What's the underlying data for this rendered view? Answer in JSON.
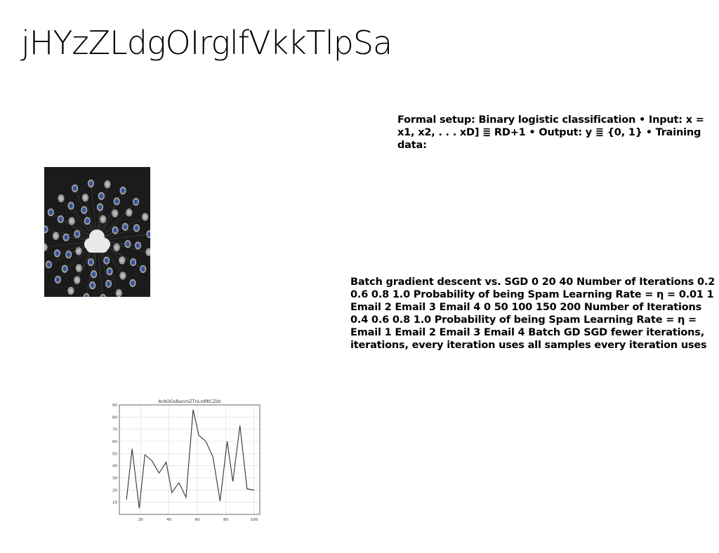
{
  "slide": {
    "title": "jHYzZLdgOIrglfVkkTlpSa",
    "setup_text": "Formal setup: Binary logistic classification • Input: x = x1, x2, . . . xD] ≣ RD+1 • Output: y ≣ {0, 1} • Training data:",
    "sgd_text": "Batch gradient descent vs. SGD 0 20 40 Number of Iterations 0.2 0.6 0.8 1.0 Probability of being Spam Learning Rate = η = 0.01 1 Email 2 Email 3 Email 4 0 50 100 150 200 Number of Iterations 0.4 0.6 0.8 1.0 Probability of being Spam Learning Rate = η = Email 1 Email 2 Email 3 Email 4 Batch GD SGD fewer iterations, iterations, every iteration uses all samples every iteration uses"
  },
  "image": {
    "icon": "cloud-network-icon",
    "colors": {
      "background": "#1b1b1b",
      "node": "#2f4fa8",
      "cloud": "#e9e9e9"
    }
  },
  "chart_data": {
    "type": "line",
    "title": "ArAOGsBanmZTnLrdfKCZdz",
    "x": [
      10,
      14,
      19,
      23,
      28,
      33,
      38,
      42,
      47,
      52,
      57,
      61,
      66,
      71,
      76,
      81,
      85,
      90,
      95,
      100
    ],
    "y": [
      12,
      54,
      5,
      49,
      44,
      34,
      43,
      18,
      26,
      14,
      86,
      65,
      60,
      47,
      11,
      60,
      27,
      73,
      21,
      20
    ],
    "xticks": [
      20,
      40,
      60,
      80,
      100
    ],
    "yticks": [
      10,
      20,
      30,
      40,
      50,
      60,
      70,
      80,
      90
    ],
    "xlim": [
      5,
      104
    ],
    "ylim": [
      0,
      90
    ],
    "grid": true,
    "line_color": "#333333"
  }
}
